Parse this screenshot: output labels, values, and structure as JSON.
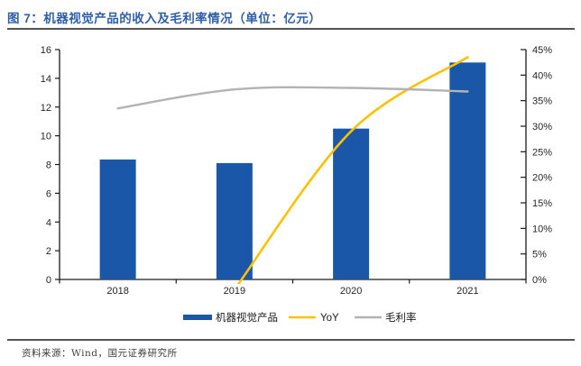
{
  "title": "图 7：机器视觉产品的收入及毛利率情况（单位：亿元）",
  "footer": {
    "source": "资料来源：Wind，国元证券研究所"
  },
  "colors": {
    "title_blue": "#2E5FA8",
    "bar_blue": "#1A57A8",
    "yoy_yellow": "#FFC000",
    "margin_gray": "#B3B3B3",
    "axis": "#1a1a1a",
    "tick_label": "#262626"
  },
  "chart_data": {
    "type": "bar",
    "categories": [
      "2018",
      "2019",
      "2020",
      "2021"
    ],
    "series": [
      {
        "name": "机器视觉产品",
        "kind": "bar",
        "axis": "left",
        "values": [
          8.35,
          8.1,
          10.5,
          15.1
        ]
      },
      {
        "name": "YoY",
        "kind": "line",
        "axis": "right",
        "values": [
          null,
          -2,
          29,
          43.5
        ]
      },
      {
        "name": "毛利率",
        "kind": "line",
        "axis": "right",
        "values": [
          33.5,
          37.2,
          37.5,
          36.8
        ]
      }
    ],
    "left_axis": {
      "min": 0,
      "max": 16,
      "step": 2,
      "suffix": ""
    },
    "right_axis": {
      "min": 0,
      "max": 45,
      "step": 5,
      "suffix": "%"
    },
    "grid": false,
    "legend_position": "bottom"
  }
}
